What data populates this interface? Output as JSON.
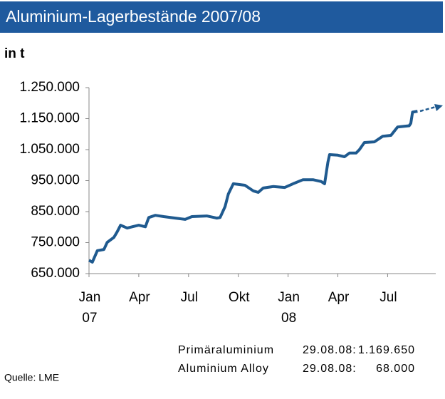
{
  "chart_data": {
    "type": "line",
    "title": "Aluminium-Lagerbestände 2007/08",
    "y_label": "in t",
    "xlim": [
      0,
      20.9
    ],
    "xticks": [
      {
        "value": 0,
        "label": "Jan 07"
      },
      {
        "value": 3,
        "label": "Apr"
      },
      {
        "value": 6,
        "label": "Jul"
      },
      {
        "value": 9,
        "label": "Okt"
      },
      {
        "value": 12,
        "label": "Jan 08"
      },
      {
        "value": 15,
        "label": "Apr"
      },
      {
        "value": 18,
        "label": "Jul"
      }
    ],
    "ylim": [
      650000,
      1250000
    ],
    "yticks": [
      {
        "value": 650000,
        "label": "650.000"
      },
      {
        "value": 750000,
        "label": "750.000"
      },
      {
        "value": 850000,
        "label": "850.000"
      },
      {
        "value": 950000,
        "label": "950.000"
      },
      {
        "value": 1050000,
        "label": "1.050.000"
      },
      {
        "value": 1150000,
        "label": "1.150.000"
      },
      {
        "value": 1250000,
        "label": "1.250.000"
      }
    ],
    "color": "#1f5a8f",
    "x": [
      0,
      0.2,
      0.5,
      0.9,
      1.1,
      1.5,
      1.7,
      1.9,
      2.3,
      2.6,
      3.0,
      3.4,
      3.6,
      4.0,
      4.5,
      5.2,
      5.8,
      6.2,
      7.1,
      7.7,
      7.9,
      8.2,
      8.4,
      8.7,
      9.4,
      9.9,
      10.2,
      10.5,
      11.1,
      11.8,
      12.3,
      12.9,
      13.5,
      14.0,
      14.2,
      14.4,
      14.5,
      15.0,
      15.4,
      15.7,
      16.1,
      16.3,
      16.6,
      17.2,
      17.7,
      18.2,
      18.6,
      19.3,
      19.4,
      19.5,
      19.8
    ],
    "values": [
      693000,
      687000,
      724000,
      728000,
      751000,
      767000,
      785000,
      806000,
      797000,
      801000,
      806000,
      801000,
      831000,
      838000,
      834000,
      829000,
      825000,
      834000,
      836000,
      829000,
      831000,
      866000,
      907000,
      940000,
      935000,
      917000,
      912000,
      926000,
      931000,
      928000,
      940000,
      953000,
      953000,
      947000,
      940000,
      1009000,
      1034000,
      1032000,
      1027000,
      1039000,
      1039000,
      1050000,
      1073000,
      1075000,
      1093000,
      1096000,
      1123000,
      1127000,
      1135000,
      1171000,
      1174000
    ],
    "table": [
      [
        "Primäraluminium",
        "29.08.08:",
        "1.169.650"
      ],
      [
        "Aluminium Alloy",
        "29.08.08:",
        "68.000"
      ]
    ],
    "source": "Quelle: LME"
  }
}
